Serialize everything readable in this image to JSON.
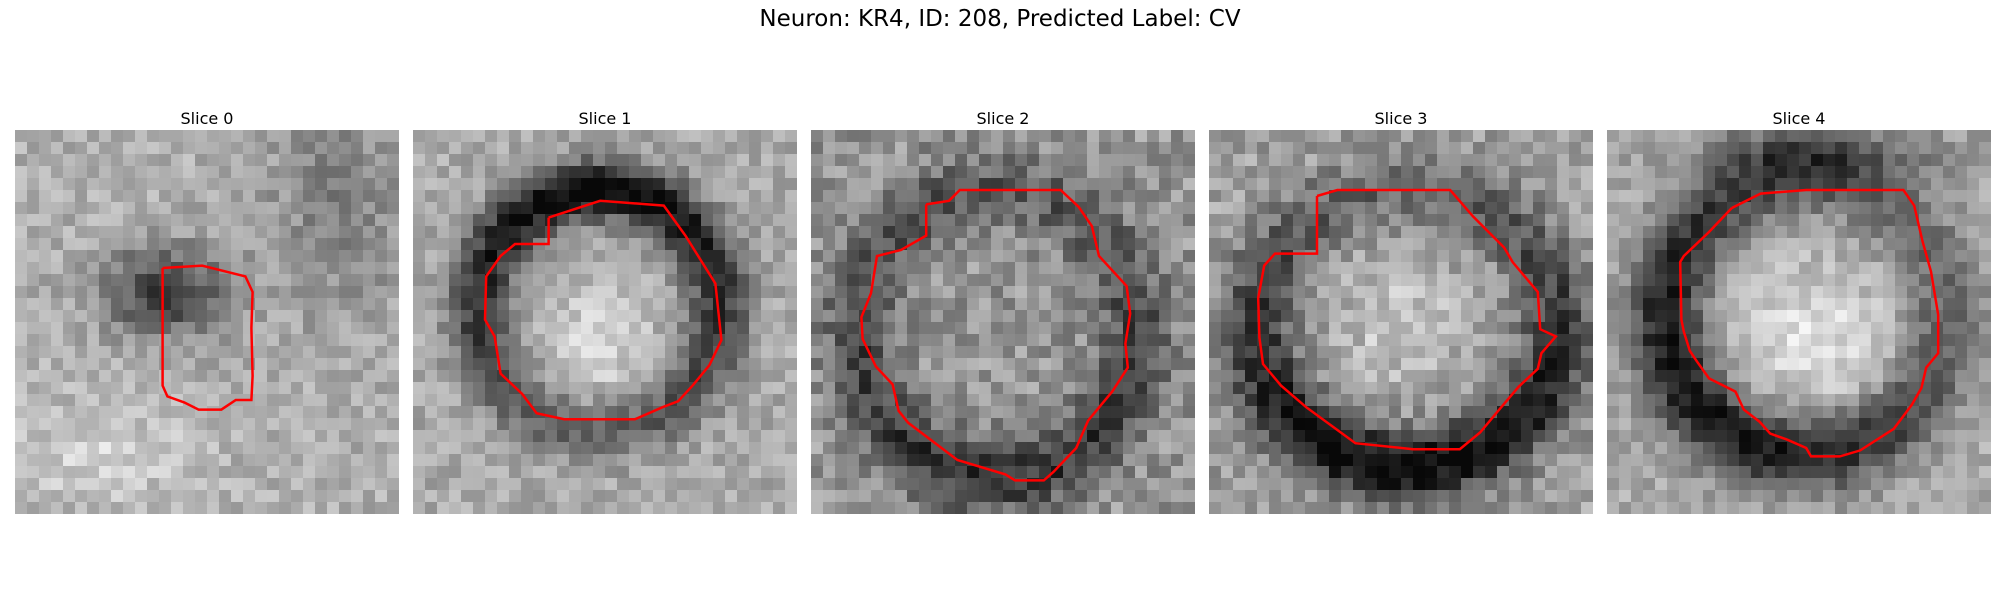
{
  "figure": {
    "title": "Neuron: KR4, ID: 208, Predicted Label: CV",
    "colormap": "grayscale",
    "contour_color": "#ff0000"
  },
  "panels": [
    {
      "title": "Slice 0"
    },
    {
      "title": "Slice 1"
    },
    {
      "title": "Slice 2"
    },
    {
      "title": "Slice 3"
    },
    {
      "title": "Slice 4"
    }
  ]
}
